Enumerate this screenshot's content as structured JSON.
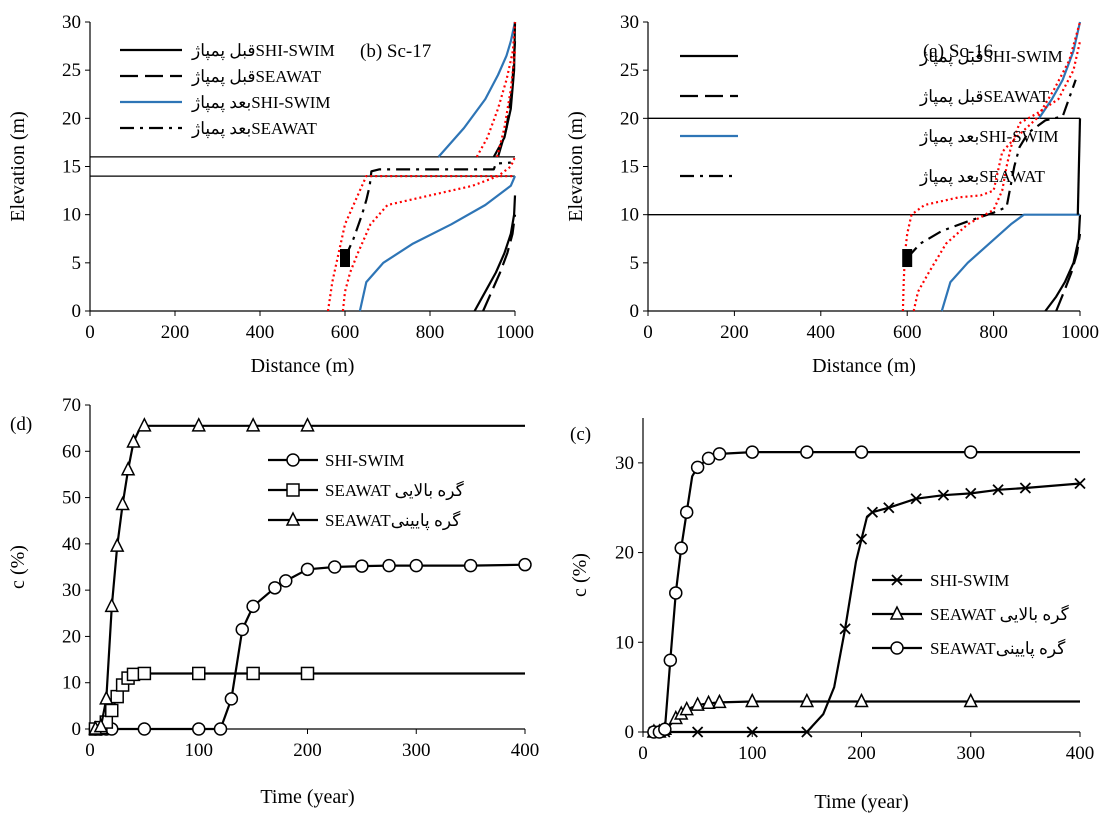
{
  "chart_data": [
    {
      "id": "b",
      "type": "line",
      "panel_label": "(b) Sc-17",
      "xlabel": "Distance (m)",
      "ylabel": "Elevation (m)",
      "xlim": [
        0,
        1000
      ],
      "ylim": [
        0,
        30
      ],
      "xticks": [
        0,
        200,
        400,
        600,
        800,
        1000
      ],
      "yticks": [
        0,
        5,
        10,
        15,
        20,
        25,
        30
      ],
      "legend_position": "top-left",
      "reference_lines": [
        {
          "y": 16,
          "x_from": 0,
          "x_to": 1000
        },
        {
          "y": 14,
          "x_from": 0,
          "x_to": 1000
        }
      ],
      "well_marker": {
        "x": 600,
        "y": 5.5
      },
      "series": [
        {
          "name": "قبل پمپاژSHI-SWIM",
          "style": "solid",
          "color": "#000000",
          "x": [
            905,
            930,
            955,
            975,
            990,
            998,
            1000
          ],
          "y": [
            0,
            2,
            4,
            6,
            8,
            10,
            12
          ]
        },
        {
          "name": "قبل پمپاژSEAWAT",
          "style": "dashed",
          "color": "#000000",
          "x": [
            925,
            945,
            965,
            982,
            994,
            1000
          ],
          "y": [
            0,
            2,
            4,
            6,
            8,
            10
          ]
        },
        {
          "name": "بعد پمپاژSHI-SWIM",
          "style": "solid",
          "color": "#2E75B6",
          "x": [
            635,
            650,
            690,
            760,
            850,
            930,
            990,
            1000
          ],
          "y": [
            0,
            3,
            5,
            7,
            9,
            11,
            13,
            14
          ]
        },
        {
          "name": "بعد پمپاژSEAWAT",
          "style": "dashdot",
          "color": "#000000",
          "x": [
            600,
            620,
            640,
            650,
            658,
            662,
            680,
            950,
            955,
            990
          ],
          "y": [
            5.5,
            7.5,
            10,
            11.5,
            13,
            14.5,
            14.7,
            14.7,
            15.3,
            15.4
          ]
        },
        {
          "name": "",
          "style": "solid",
          "color": "#2E75B6",
          "x": [
            820,
            880,
            930,
            960,
            980,
            990,
            1000
          ],
          "y": [
            16,
            19,
            22,
            24.5,
            26.5,
            28,
            30
          ]
        },
        {
          "name": "",
          "style": "solid",
          "color": "#000000",
          "x": [
            950,
            975,
            990,
            998,
            1000
          ],
          "y": [
            16,
            18,
            21,
            25,
            30
          ]
        },
        {
          "name": "",
          "style": "dashed",
          "color": "#000000",
          "x": [
            960,
            980,
            993,
            1000
          ],
          "y": [
            16,
            19,
            23,
            28
          ]
        },
        {
          "name": "",
          "style": "dotted",
          "color": "#FF0000",
          "x": [
            560,
            570,
            585,
            600,
            620,
            640,
            650,
            1000
          ],
          "y": [
            0,
            3,
            6,
            9,
            11,
            13,
            14,
            14
          ]
        },
        {
          "name": "",
          "style": "dotted",
          "color": "#FF0000",
          "x": [
            595,
            600,
            612,
            630,
            660,
            700,
            900,
            960,
            990,
            1000
          ],
          "y": [
            0,
            2,
            4,
            6,
            9,
            11,
            13,
            14,
            15,
            16
          ]
        },
        {
          "name": "",
          "style": "dotted",
          "color": "#FF0000",
          "x": [
            910,
            935,
            960,
            980,
            995,
            1000
          ],
          "y": [
            16,
            18,
            21,
            24,
            27,
            30
          ]
        },
        {
          "name": "",
          "style": "dotted",
          "color": "#FF0000",
          "x": [
            958,
            975,
            990,
            1000
          ],
          "y": [
            16,
            19,
            23,
            27
          ]
        }
      ]
    },
    {
      "id": "a",
      "type": "line",
      "panel_label": "(a) Sc-16",
      "xlabel": "Distance (m)",
      "ylabel": "Elevation (m)",
      "xlim": [
        0,
        1000
      ],
      "ylim": [
        0,
        30
      ],
      "xticks": [
        0,
        200,
        400,
        600,
        800,
        1000
      ],
      "yticks": [
        0,
        5,
        10,
        15,
        20,
        25,
        30
      ],
      "legend_position": "top-left",
      "reference_lines": [
        {
          "y": 20,
          "x_from": 0,
          "x_to": 1000
        },
        {
          "y": 10,
          "x_from": 0,
          "x_to": 1000
        }
      ],
      "well_marker": {
        "x": 600,
        "y": 5.5
      },
      "series": [
        {
          "name": "قبل پمپاژSHI-SWIM",
          "style": "solid",
          "color": "#000000",
          "x": [
            920,
            945,
            965,
            985,
            997,
            1000
          ],
          "y": [
            0,
            1.5,
            3,
            5,
            7.5,
            10
          ]
        },
        {
          "name": "قبل پمپاژSEAWAT",
          "style": "dashed",
          "color": "#000000",
          "x": [
            945,
            963,
            980,
            993,
            1000
          ],
          "y": [
            0,
            2,
            4,
            6,
            8
          ]
        },
        {
          "name": "بعد پمپاژSHI-SWIM",
          "style": "solid",
          "color": "#2E75B6",
          "x": [
            680,
            700,
            740,
            790,
            840,
            870,
            1000
          ],
          "y": [
            0,
            3,
            5,
            7,
            9,
            10,
            10
          ]
        },
        {
          "name": "بعد پمپاژSEAWAT",
          "style": "dashdot",
          "color": "#000000",
          "x": [
            600,
            630,
            680,
            740,
            800,
            830,
            848,
            860,
            880,
            920,
            960,
            990
          ],
          "y": [
            5.5,
            7,
            8.3,
            9.3,
            10.2,
            10.8,
            15,
            17,
            18.5,
            19.8,
            20.2,
            24
          ]
        },
        {
          "name": "",
          "style": "solid",
          "color": "#2E75B6",
          "x": [
            905,
            935,
            960,
            985,
            1000
          ],
          "y": [
            20,
            22,
            24,
            27,
            30
          ]
        },
        {
          "name": "",
          "style": "solid",
          "color": "#000000",
          "x": [
            995,
            1000
          ],
          "y": [
            10,
            20
          ]
        },
        {
          "name": "",
          "style": "dotted",
          "color": "#FF0000",
          "x": [
            590,
            592,
            595,
            600,
            610,
            640,
            720,
            770,
            800,
            810,
            820,
            840,
            900,
            940,
            975,
            1000
          ],
          "y": [
            0,
            3,
            6,
            8,
            10,
            11,
            11.8,
            12,
            12.5,
            14.5,
            16.5,
            17.5,
            20,
            23,
            26,
            30
          ]
        },
        {
          "name": "",
          "style": "dotted",
          "color": "#FF0000",
          "x": [
            615,
            625,
            650,
            690,
            740,
            800,
            820,
            830,
            840,
            860,
            900,
            950,
            985,
            1000
          ],
          "y": [
            0,
            2,
            4,
            7,
            9,
            10.5,
            12.5,
            15,
            17,
            19.5,
            20.5,
            22,
            25,
            28
          ]
        }
      ]
    },
    {
      "id": "d",
      "type": "line",
      "panel_label": "(d)",
      "xlabel": "Time (year)",
      "ylabel": "c (%)",
      "xlim": [
        0,
        400
      ],
      "ylim": [
        0,
        70
      ],
      "xticks": [
        0,
        100,
        200,
        300,
        400
      ],
      "yticks": [
        0,
        10,
        20,
        30,
        40,
        50,
        60,
        70
      ],
      "legend_position": "upper-right",
      "series": [
        {
          "name": "SHI-SWIM",
          "marker": "circle",
          "x": [
            5,
            10,
            15,
            20,
            50,
            100,
            120,
            130,
            140,
            150,
            170,
            180,
            200,
            225,
            250,
            275,
            300,
            350,
            400
          ],
          "y": [
            0,
            0,
            0,
            0,
            0,
            0,
            0,
            6.5,
            21.5,
            26.5,
            30.5,
            32,
            34.5,
            35,
            35.2,
            35.3,
            35.3,
            35.3,
            35.5
          ],
          "marker_x": [
            5,
            10,
            15,
            20,
            50,
            100,
            120,
            130,
            140,
            150,
            170,
            180,
            200,
            225,
            250,
            275,
            300,
            350,
            400
          ]
        },
        {
          "name": "SEAWAT گره بالایی",
          "marker": "square",
          "x": [
            5,
            10,
            15,
            20,
            25,
            30,
            35,
            40,
            50,
            100,
            150,
            200,
            400
          ],
          "y": [
            0,
            0.3,
            1.5,
            4,
            7,
            9.5,
            11,
            11.8,
            12,
            12,
            12,
            12,
            12
          ],
          "marker_x": [
            5,
            10,
            15,
            20,
            25,
            30,
            35,
            40,
            50,
            100,
            150,
            200
          ]
        },
        {
          "name": "SEAWATگره پایینی",
          "marker": "triangle",
          "x": [
            5,
            10,
            15,
            20,
            25,
            30,
            35,
            40,
            45,
            50,
            75,
            100,
            150,
            200,
            400
          ],
          "y": [
            0,
            0.5,
            6.5,
            26.5,
            39.5,
            48.5,
            56,
            62,
            64.5,
            65.5,
            65.5,
            65.5,
            65.5,
            65.5,
            65.5
          ],
          "marker_x": [
            5,
            10,
            15,
            20,
            25,
            30,
            35,
            40,
            50,
            100,
            150,
            200
          ]
        }
      ]
    },
    {
      "id": "c",
      "type": "line",
      "panel_label": "(c)",
      "xlabel": "Time (year)",
      "ylabel": "c (%)",
      "xlim": [
        0,
        400
      ],
      "ylim": [
        0,
        35
      ],
      "xticks": [
        0,
        100,
        200,
        300,
        400
      ],
      "yticks": [
        0,
        10,
        20,
        30
      ],
      "legend_position": "lower-right",
      "series": [
        {
          "name": "SHI-SWIM",
          "marker": "x",
          "x": [
            10,
            15,
            20,
            50,
            100,
            150,
            165,
            175,
            185,
            195,
            205,
            210,
            225,
            250,
            275,
            300,
            325,
            350,
            400
          ],
          "y": [
            0,
            0,
            0,
            0,
            0,
            0,
            2,
            5,
            11.5,
            19,
            24,
            24.5,
            25,
            26,
            26.4,
            26.6,
            27,
            27.2,
            27.7
          ],
          "marker_x": [
            10,
            15,
            20,
            50,
            100,
            150,
            185,
            200,
            210,
            225,
            250,
            275,
            300,
            325,
            350,
            400
          ]
        },
        {
          "name": "SEAWAT گره بالایی",
          "marker": "triangle",
          "x": [
            10,
            15,
            20,
            25,
            30,
            35,
            40,
            50,
            60,
            70,
            100,
            150,
            200,
            300,
            400
          ],
          "y": [
            0,
            0,
            0.3,
            0.8,
            1.5,
            2,
            2.5,
            3,
            3.2,
            3.3,
            3.4,
            3.4,
            3.4,
            3.4,
            3.4
          ],
          "marker_x": [
            10,
            15,
            20,
            30,
            35,
            40,
            50,
            60,
            70,
            100,
            150,
            200,
            300
          ]
        },
        {
          "name": "SEAWATگره پایینی",
          "marker": "circle",
          "x": [
            10,
            15,
            20,
            25,
            30,
            35,
            40,
            45,
            50,
            60,
            70,
            100,
            150,
            200,
            300,
            400
          ],
          "y": [
            0,
            0,
            0.3,
            8,
            15.5,
            20.5,
            24.5,
            28.5,
            29.5,
            30.5,
            31,
            31.2,
            31.2,
            31.2,
            31.2,
            31.2
          ],
          "marker_x": [
            10,
            15,
            20,
            25,
            30,
            35,
            40,
            50,
            60,
            70,
            100,
            150,
            200,
            300
          ]
        }
      ]
    }
  ]
}
